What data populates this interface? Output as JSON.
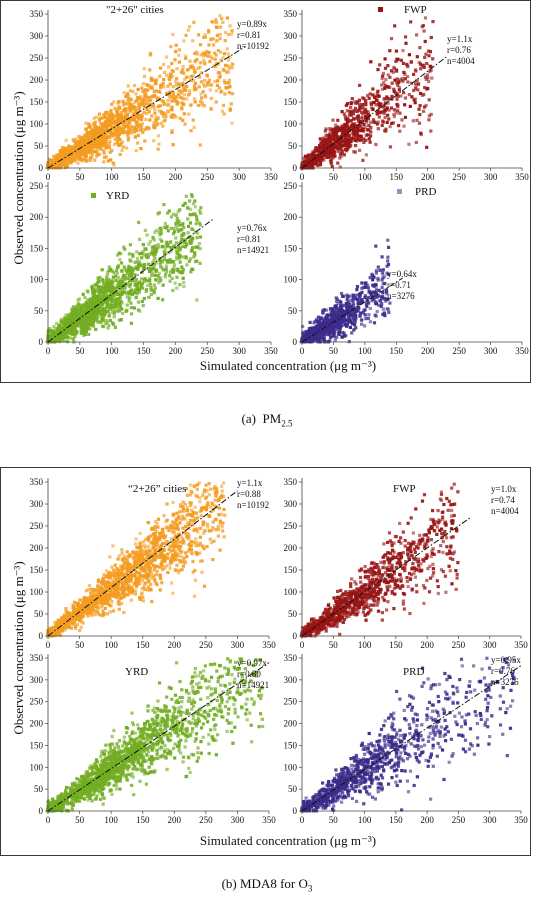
{
  "captions": {
    "a": {
      "label": "(a)",
      "text": "PM",
      "sub": "2.5"
    },
    "b": {
      "text": "(b) MDA8 for O",
      "sub": "3"
    }
  },
  "chart_data": [
    {
      "type": "scatter",
      "figure": "a",
      "ylabel": "Observed concentration (μg m⁻³)",
      "xlabel": "Simulated concentration (μg m⁻³)",
      "panels": [
        {
          "id": "a-223",
          "title": "\"2+26\" cities",
          "color": "#f39c21",
          "legend_color": "#f39c21",
          "stats": [
            "y=0.89x",
            "r=0.81",
            "n=10192"
          ],
          "slope": 0.89,
          "r": 0.81,
          "n": 10192,
          "xlim": [
            0,
            350
          ],
          "ylim": [
            0,
            350
          ],
          "xticks": [
            0,
            50,
            100,
            150,
            200,
            250,
            300,
            350
          ],
          "yticks": [
            0,
            50,
            100,
            150,
            200,
            250,
            300,
            350
          ],
          "sample": {
            "count": 1500,
            "x_range": [
              0,
              290
            ],
            "x_mode": 70,
            "noise": 0.28,
            "seed": 11
          }
        },
        {
          "id": "a-fwp",
          "title": "FWP",
          "color": "#991515",
          "legend_color": "#991515",
          "stats": [
            "y=1.1x",
            "r=0.76",
            "n=4004"
          ],
          "slope": 1.1,
          "r": 0.76,
          "n": 4004,
          "xlim": [
            0,
            350
          ],
          "ylim": [
            0,
            350
          ],
          "xticks": [
            0,
            50,
            100,
            150,
            200,
            250,
            300,
            350
          ],
          "yticks": [
            0,
            50,
            100,
            150,
            200,
            250,
            300,
            350
          ],
          "sample": {
            "count": 900,
            "x_range": [
              0,
              210
            ],
            "x_mode": 60,
            "noise": 0.32,
            "seed": 23
          }
        },
        {
          "id": "a-yrd",
          "title": "YRD",
          "color": "#72ad22",
          "legend_color": "#72ad22",
          "stats": [
            "y=0.76x",
            "r=0.81",
            "n=14921"
          ],
          "slope": 0.76,
          "r": 0.81,
          "n": 14921,
          "xlim": [
            0,
            350
          ],
          "ylim": [
            0,
            250
          ],
          "xticks": [
            0,
            50,
            100,
            150,
            200,
            250,
            300,
            350
          ],
          "yticks": [
            0,
            50,
            100,
            150,
            200,
            250
          ],
          "sample": {
            "count": 1600,
            "x_range": [
              0,
              240
            ],
            "x_mode": 60,
            "noise": 0.26,
            "seed": 37
          }
        },
        {
          "id": "a-prd",
          "title": "PRD",
          "color": "#3d2b8a",
          "legend_color": "#9b8fc9",
          "stats": [
            "y=0.64x",
            "r=0.71",
            "n=3276"
          ],
          "slope": 0.64,
          "r": 0.71,
          "n": 3276,
          "xlim": [
            0,
            350
          ],
          "ylim": [
            0,
            250
          ],
          "xticks": [
            0,
            50,
            100,
            150,
            200,
            250,
            300,
            350
          ],
          "yticks": [
            0,
            50,
            100,
            150,
            200,
            250
          ],
          "sample": {
            "count": 800,
            "x_range": [
              0,
              140
            ],
            "x_mode": 45,
            "noise": 0.3,
            "seed": 41
          }
        }
      ]
    },
    {
      "type": "scatter",
      "figure": "b",
      "ylabel": "Observed concentration (μg m⁻³)",
      "xlabel": "Simulated concentration (μg m⁻³)",
      "panels": [
        {
          "id": "b-223",
          "title": "“2+26” cities",
          "color": "#f39c21",
          "legend_color": "#f39c21",
          "stats": [
            "y=1.1x",
            "r=0.88",
            "n=10192"
          ],
          "slope": 1.1,
          "r": 0.88,
          "n": 10192,
          "xlim": [
            0,
            350
          ],
          "ylim": [
            0,
            350
          ],
          "xticks": [
            0,
            50,
            100,
            150,
            200,
            250,
            300,
            350
          ],
          "yticks": [
            0,
            50,
            100,
            150,
            200,
            250,
            300,
            350
          ],
          "sample": {
            "count": 1600,
            "x_range": [
              0,
              280
            ],
            "x_mode": 120,
            "noise": 0.2,
            "seed": 53
          }
        },
        {
          "id": "b-fwp",
          "title": "FWP",
          "color": "#991515",
          "legend_color": "#991515",
          "stats": [
            "y=1.0x",
            "r=0.74",
            "n=4004"
          ],
          "slope": 1.0,
          "r": 0.74,
          "n": 4004,
          "xlim": [
            0,
            350
          ],
          "ylim": [
            0,
            350
          ],
          "xticks": [
            0,
            50,
            100,
            150,
            200,
            250,
            300,
            350
          ],
          "yticks": [
            0,
            50,
            100,
            150,
            200,
            250,
            300,
            350
          ],
          "sample": {
            "count": 1000,
            "x_range": [
              0,
              250
            ],
            "x_mode": 90,
            "noise": 0.25,
            "seed": 61
          }
        },
        {
          "id": "b-yrd",
          "title": "YRD",
          "color": "#72ad22",
          "legend_color": "#72ad22",
          "stats": [
            "y=0.97x",
            "r=0.80",
            "n=14921"
          ],
          "slope": 0.97,
          "r": 0.8,
          "n": 14921,
          "xlim": [
            0,
            350
          ],
          "ylim": [
            0,
            350
          ],
          "xticks": [
            0,
            50,
            100,
            150,
            200,
            250,
            300,
            350
          ],
          "yticks": [
            0,
            50,
            100,
            150,
            200,
            250,
            300,
            350
          ],
          "sample": {
            "count": 1700,
            "x_range": [
              0,
              340
            ],
            "x_mode": 100,
            "noise": 0.24,
            "seed": 71
          }
        },
        {
          "id": "b-prd",
          "title": "PRD",
          "color": "#3d2b8a",
          "legend_color": "#3d2b8a",
          "stats": [
            "y=0.95x",
            "r=0.76",
            "n=3276"
          ],
          "slope": 0.95,
          "r": 0.76,
          "n": 3276,
          "xlim": [
            0,
            350
          ],
          "ylim": [
            0,
            350
          ],
          "xticks": [
            0,
            50,
            100,
            150,
            200,
            250,
            300,
            350
          ],
          "yticks": [
            0,
            50,
            100,
            150,
            200,
            250,
            300,
            350
          ],
          "sample": {
            "count": 1000,
            "x_range": [
              0,
              340
            ],
            "x_mode": 90,
            "noise": 0.28,
            "seed": 83
          }
        }
      ]
    }
  ]
}
